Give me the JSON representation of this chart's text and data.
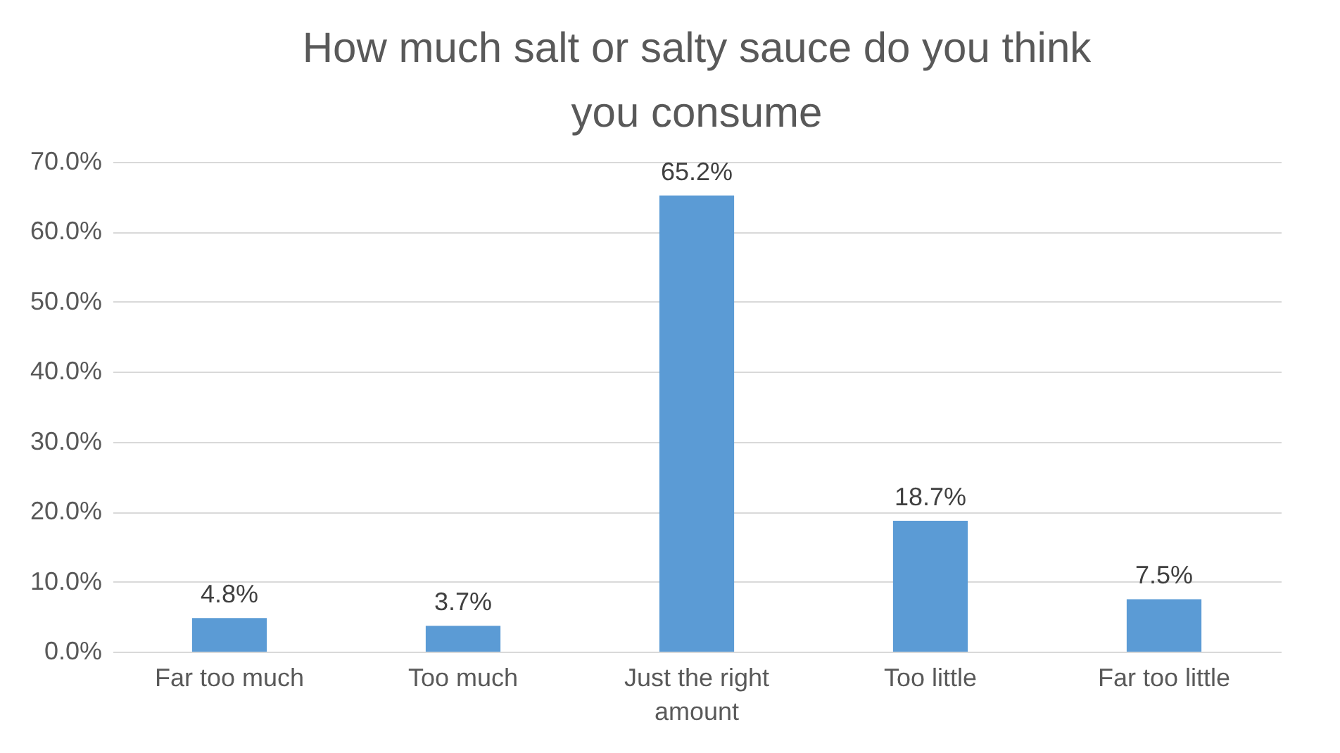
{
  "chart_data": {
    "type": "bar",
    "title": "How much salt or salty sauce do you think you consume",
    "categories": [
      "Far too much",
      "Too much",
      "Just the right amount",
      "Too little",
      "Far too little"
    ],
    "values": [
      4.8,
      3.7,
      65.2,
      18.7,
      7.5
    ],
    "value_labels": [
      "4.8%",
      "3.7%",
      "65.2%",
      "18.7%",
      "7.5%"
    ],
    "color": "#5b9bd5",
    "ylim": [
      0,
      70
    ],
    "yticks": [
      {
        "value": 0,
        "label": "0.0%"
      },
      {
        "value": 10,
        "label": "10.0%"
      },
      {
        "value": 20,
        "label": "20.0%"
      },
      {
        "value": 30,
        "label": "30.0%"
      },
      {
        "value": 40,
        "label": "40.0%"
      },
      {
        "value": 50,
        "label": "50.0%"
      },
      {
        "value": 60,
        "label": "60.0%"
      },
      {
        "value": 70,
        "label": "70.0%"
      }
    ],
    "grid": "y"
  }
}
